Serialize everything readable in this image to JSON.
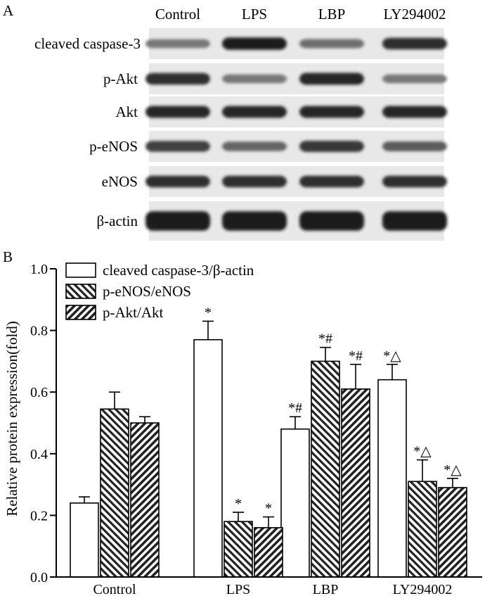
{
  "panel_a": {
    "letter": "A",
    "lanes": [
      "Control",
      "LPS",
      "LBP",
      "LY294002"
    ],
    "rows": [
      {
        "label": "cleaved caspase-3",
        "intensity": [
          0.45,
          0.95,
          0.5,
          0.85
        ]
      },
      {
        "label": "p-Akt",
        "intensity": [
          0.85,
          0.45,
          0.9,
          0.45
        ]
      },
      {
        "label": "Akt",
        "intensity": [
          0.9,
          0.9,
          0.9,
          0.9
        ]
      },
      {
        "label": "p-eNOS",
        "intensity": [
          0.75,
          0.55,
          0.8,
          0.6
        ]
      },
      {
        "label": "eNOS",
        "intensity": [
          0.85,
          0.85,
          0.85,
          0.85
        ]
      },
      {
        "label": "β-actin",
        "intensity": [
          0.95,
          0.95,
          0.95,
          0.95
        ]
      }
    ]
  },
  "chart_data": {
    "panel_letter": "B",
    "type": "bar",
    "categories": [
      "Control",
      "LPS",
      "LBP",
      "LY294002"
    ],
    "ylabel": "Relative protein expression(fold)",
    "ylim": [
      0,
      1.0
    ],
    "yticks": [
      "0.0",
      "0.2",
      "0.4",
      "0.6",
      "0.8",
      "1.0"
    ],
    "legend_position": "top-left",
    "series": [
      {
        "name": "cleaved caspase-3/β-actin",
        "pattern": "white",
        "values": [
          0.24,
          0.77,
          0.48,
          0.64
        ],
        "errors": [
          0.02,
          0.06,
          0.04,
          0.05
        ],
        "marks": [
          "",
          "*",
          "*#",
          "*△"
        ]
      },
      {
        "name": "p-eNOS/eNOS",
        "pattern": "hatch-back",
        "values": [
          0.545,
          0.18,
          0.7,
          0.31
        ],
        "errors": [
          0.055,
          0.03,
          0.045,
          0.07
        ],
        "marks": [
          "",
          "*",
          "*#",
          "*△"
        ]
      },
      {
        "name": "p-Akt/Akt",
        "pattern": "hatch-forward",
        "values": [
          0.5,
          0.16,
          0.61,
          0.29
        ],
        "errors": [
          0.02,
          0.035,
          0.08,
          0.03
        ],
        "marks": [
          "",
          "*",
          "*#",
          "*△"
        ]
      }
    ]
  }
}
